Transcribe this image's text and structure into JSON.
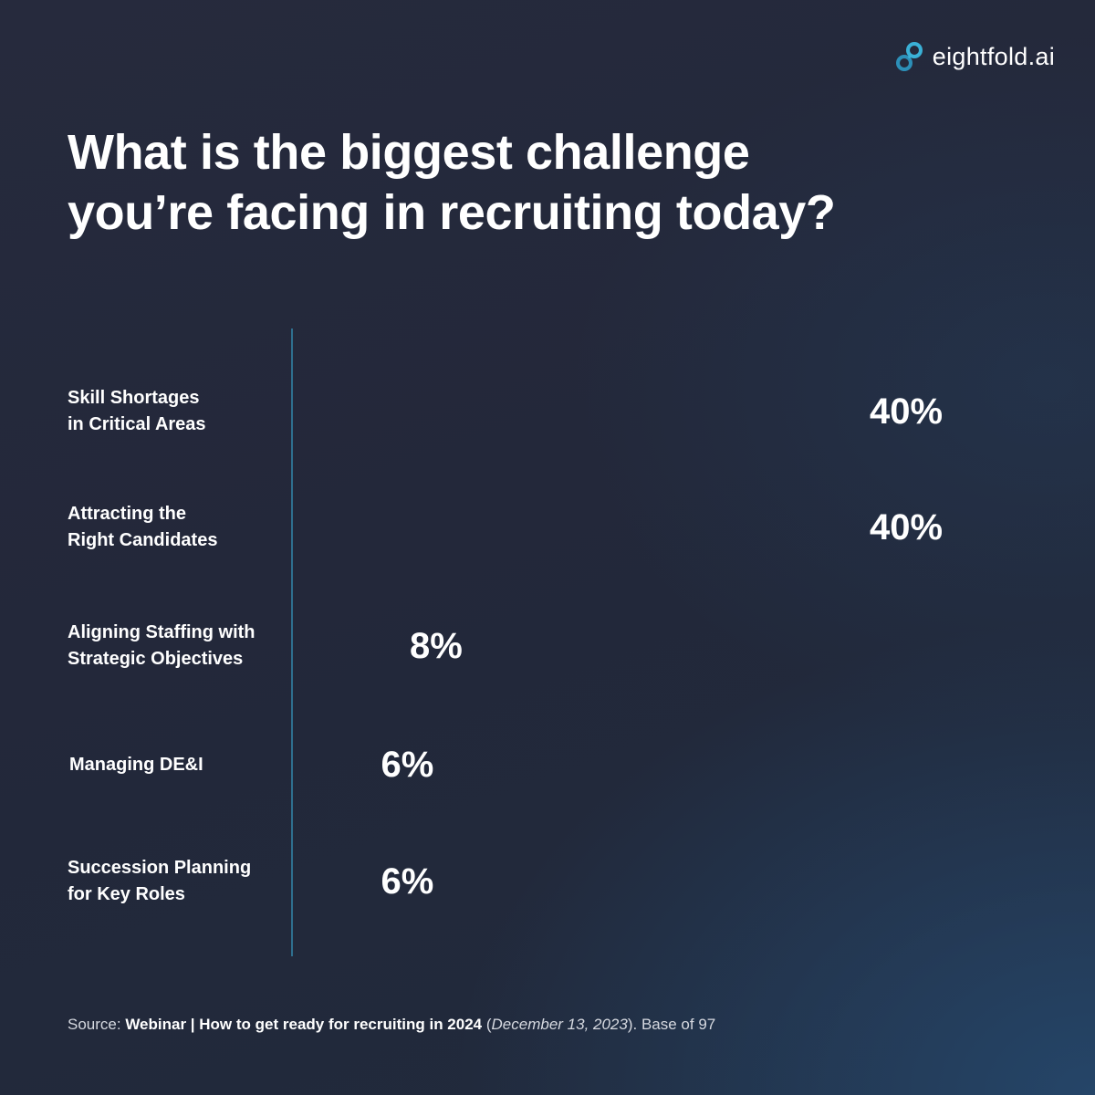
{
  "brand": {
    "name": "eightfold.ai",
    "logo_icon": "linked-rings-icon",
    "accent_color": "#3ab0d6"
  },
  "title_lines": [
    "What is the biggest challenge",
    "you’re facing in recruiting today?"
  ],
  "chart_data": {
    "type": "bar",
    "orientation": "horizontal",
    "categories": [
      [
        "Skill Shortages",
        "in Critical Areas"
      ],
      [
        "Attracting the",
        "Right Candidates"
      ],
      [
        "Aligning Staffing with",
        "Strategic Objectives"
      ],
      [
        "Managing DE&I"
      ],
      [
        "Succession Planning",
        "for Key Roles"
      ]
    ],
    "values": [
      40,
      40,
      8,
      6,
      6
    ],
    "value_labels": [
      "40%",
      "40%",
      "8%",
      "6%",
      "6%"
    ],
    "unit": "%",
    "title": "What is the biggest challenge you’re facing in recruiting today?",
    "xlabel": "",
    "ylabel": "",
    "xlim": [
      0,
      40
    ],
    "grid": false,
    "legend": "none",
    "axis_color": "#2f6f8f"
  },
  "source": {
    "prefix": "Source: ",
    "title": "Webinar | How to get ready for recruiting in 2024",
    "open_paren": " (",
    "date": "December 13, 2023",
    "suffix": "). Base of 97"
  }
}
